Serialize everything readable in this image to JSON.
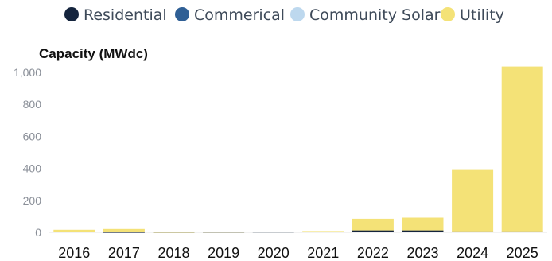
{
  "chart_data": {
    "type": "bar",
    "stacked": true,
    "categories": [
      "2016",
      "2017",
      "2018",
      "2019",
      "2020",
      "2021",
      "2022",
      "2023",
      "2024",
      "2025"
    ],
    "series": [
      {
        "name": "Residential",
        "color": "#14243d",
        "values": [
          0,
          1,
          1,
          2,
          3,
          6,
          12,
          12,
          6,
          6
        ]
      },
      {
        "name": "Commerical",
        "color": "#2f5f95",
        "values": [
          0,
          0,
          0,
          0,
          0,
          0,
          0,
          0,
          0,
          0
        ]
      },
      {
        "name": "Community Solar",
        "color": "#bdd8ee",
        "values": [
          0,
          0,
          0,
          0,
          0,
          0,
          0,
          0,
          0,
          0
        ]
      },
      {
        "name": "Utility",
        "color": "#f4e277",
        "values": [
          16,
          20,
          1,
          1,
          0,
          2,
          73,
          80,
          384,
          1031
        ]
      }
    ],
    "title": "",
    "ylabel": "Capacity (MWdc)",
    "xlabel": "",
    "ylim": [
      0,
      1000
    ],
    "yticks": [
      0,
      200,
      400,
      600,
      800,
      1000
    ],
    "ytick_labels": [
      "0",
      "200",
      "400",
      "600",
      "800",
      "1,000"
    ],
    "grid": false,
    "legend_position": "top-center"
  }
}
